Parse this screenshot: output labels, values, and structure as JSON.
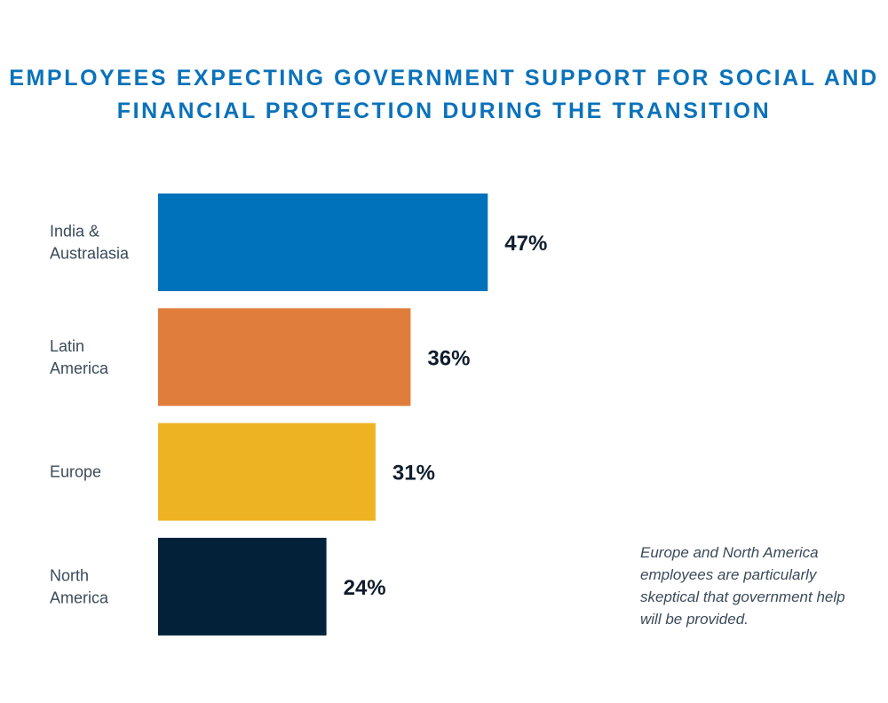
{
  "chart_data": {
    "type": "bar",
    "orientation": "horizontal",
    "title": "EMPLOYEES EXPECTING GOVERNMENT SUPPORT FOR SOCIAL AND FINANCIAL PROTECTION DURING THE TRANSITION",
    "categories": [
      [
        "India &",
        "Australasia"
      ],
      [
        "Latin",
        "America"
      ],
      [
        "Europe"
      ],
      [
        "North",
        "America"
      ]
    ],
    "values": [
      47,
      36,
      31,
      24
    ],
    "value_labels": [
      "47%",
      "36%",
      "31%",
      "24%"
    ],
    "colors": [
      "#0072bb",
      "#e07d3a",
      "#eeb322",
      "#03223a"
    ],
    "xlim": [
      0,
      100
    ],
    "grid": false,
    "xlabel": "",
    "ylabel": "",
    "annotation": "Europe and North America employees are particularly skeptical that government help will be provided."
  }
}
